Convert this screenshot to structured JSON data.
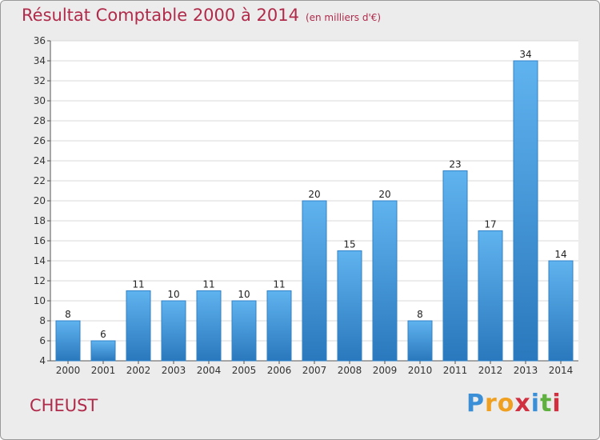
{
  "title": "Résultat Comptable 2000 à 2014",
  "subtitle": "(en milliers d'€)",
  "commune": "CHEUST",
  "logo": {
    "letters": [
      "P",
      "r",
      "o",
      "x",
      "i",
      "t",
      "i"
    ],
    "colors": [
      "#3a8fd6",
      "#f0a020",
      "#f0a020",
      "#d03040",
      "#3a8fd6",
      "#60b040",
      "#d03040"
    ]
  },
  "colors": {
    "bar": "#3d95d8",
    "bar_light": "#5fb3ee",
    "bar_dark": "#2a78bd",
    "title": "#b02a4a",
    "grid": "#d8d8d8"
  },
  "chart_data": {
    "type": "bar",
    "title": "Résultat Comptable 2000 à 2014",
    "xlabel": "",
    "ylabel": "",
    "ylim": [
      4,
      36
    ],
    "yticks": [
      4,
      6,
      8,
      10,
      12,
      14,
      16,
      18,
      20,
      22,
      24,
      26,
      28,
      30,
      32,
      34,
      36
    ],
    "categories": [
      "2000",
      "2001",
      "2002",
      "2003",
      "2004",
      "2005",
      "2006",
      "2007",
      "2008",
      "2009",
      "2010",
      "2011",
      "2012",
      "2013",
      "2014"
    ],
    "values": [
      8,
      6,
      11,
      10,
      11,
      10,
      11,
      20,
      15,
      20,
      8,
      23,
      17,
      34,
      14
    ]
  }
}
